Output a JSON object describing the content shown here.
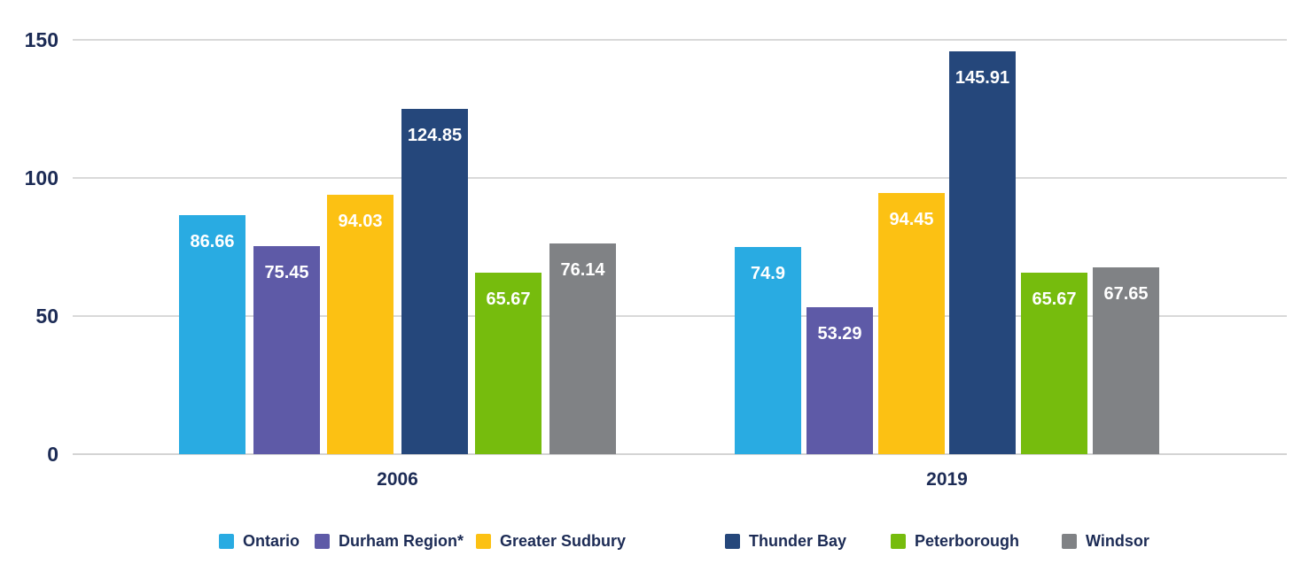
{
  "chart_data": {
    "type": "bar",
    "categories": [
      "2006",
      "2019"
    ],
    "series": [
      {
        "name": "Ontario",
        "color": "#29ABE2",
        "values": [
          86.66,
          74.9
        ]
      },
      {
        "name": "Durham Region*",
        "color": "#5E5AA7",
        "values": [
          75.45,
          53.29
        ]
      },
      {
        "name": "Greater Sudbury",
        "color": "#FCC113",
        "values": [
          94.03,
          94.45
        ]
      },
      {
        "name": "Thunder Bay",
        "color": "#25477B",
        "values": [
          124.85,
          145.91
        ]
      },
      {
        "name": "Peterborough",
        "color": "#76BC0D",
        "values": [
          65.67,
          65.67
        ]
      },
      {
        "name": "Windsor",
        "color": "#808285",
        "values": [
          76.14,
          67.65
        ]
      }
    ],
    "y_ticks": [
      0,
      50,
      100,
      150
    ],
    "ylim": [
      0,
      150
    ],
    "grid": true,
    "value_labels": true,
    "legend_position": "bottom"
  },
  "colors": {
    "axis_text": "#1C2B55",
    "gridline": "#D9D9D9",
    "baseline": "#D4D4D4",
    "value_label_text": "#FFFFFF",
    "background": "#FFFFFF"
  }
}
